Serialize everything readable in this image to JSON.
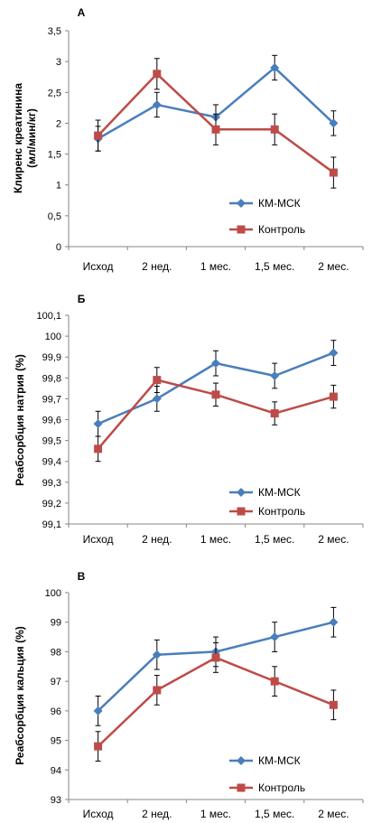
{
  "chart_data": [
    {
      "panel": "A",
      "type": "line",
      "title": "А",
      "ylabel": "Клиренс креатинина (мл/мин/кг)",
      "ylabel_lines": [
        "Клиренс креатинина",
        "(мл/мин/кг)"
      ],
      "categories": [
        "Исход",
        "2 нед.",
        "1 мес.",
        "1,5 мес.",
        "2 мес."
      ],
      "ylim": [
        0,
        3.5
      ],
      "yticks": [
        0,
        0.5,
        1,
        1.5,
        2,
        2.5,
        3,
        3.5
      ],
      "ytick_labels": [
        "0",
        "0,5",
        "1",
        "1,5",
        "2",
        "2,5",
        "3",
        "3,5"
      ],
      "legend_position": "bottom-right",
      "series": [
        {
          "name": "КМ-МСК",
          "color": "#4a7ebb",
          "marker": "diamond",
          "values": [
            1.75,
            2.3,
            2.1,
            2.9,
            2.0
          ],
          "errors": [
            0.2,
            0.2,
            0.2,
            0.2,
            0.2
          ]
        },
        {
          "name": "Контроль",
          "color": "#be4b48",
          "marker": "square",
          "values": [
            1.8,
            2.8,
            1.9,
            1.9,
            1.2
          ],
          "errors": [
            0.25,
            0.25,
            0.25,
            0.25,
            0.25
          ]
        }
      ]
    },
    {
      "panel": "B",
      "type": "line",
      "title": "Б",
      "ylabel": "Реабсорбция натрия (%)",
      "ylabel_lines": [
        "Реабсорбция натрия (%)"
      ],
      "categories": [
        "Исход",
        "2 нед.",
        "1 мес.",
        "1,5 мес.",
        "2 мес."
      ],
      "ylim": [
        99.1,
        100.1
      ],
      "yticks": [
        99.1,
        99.2,
        99.3,
        99.4,
        99.5,
        99.6,
        99.7,
        99.8,
        99.9,
        100.0,
        100.1
      ],
      "ytick_labels": [
        "99,1",
        "99,2",
        "99,3",
        "99,4",
        "99,5",
        "99,6",
        "99,7",
        "99,8",
        "99,9",
        "100",
        "100,1"
      ],
      "legend_position": "bottom-right",
      "series": [
        {
          "name": "КМ-МСК",
          "color": "#4a7ebb",
          "marker": "diamond",
          "values": [
            99.58,
            99.7,
            99.87,
            99.81,
            99.92
          ],
          "errors": [
            0.06,
            0.06,
            0.06,
            0.06,
            0.06
          ]
        },
        {
          "name": "Контроль",
          "color": "#be4b48",
          "marker": "square",
          "values": [
            99.46,
            99.79,
            99.72,
            99.63,
            99.71
          ],
          "errors": [
            0.06,
            0.06,
            0.055,
            0.055,
            0.055
          ]
        }
      ]
    },
    {
      "panel": "C",
      "type": "line",
      "title": "В",
      "ylabel": "Реабсорбция кальция (%)",
      "ylabel_lines": [
        "Реабсорбция кальция (%)"
      ],
      "categories": [
        "Исход",
        "2 нед.",
        "1 мес.",
        "1,5 мес.",
        "2 мес."
      ],
      "ylim": [
        93,
        100
      ],
      "yticks": [
        93,
        94,
        95,
        96,
        97,
        98,
        99,
        100
      ],
      "ytick_labels": [
        "93",
        "94",
        "95",
        "96",
        "97",
        "98",
        "99",
        "100"
      ],
      "legend_position": "bottom-right",
      "series": [
        {
          "name": "КМ-МСК",
          "color": "#4a7ebb",
          "marker": "diamond",
          "values": [
            96.0,
            97.9,
            98.0,
            98.5,
            99.0
          ],
          "errors": [
            0.5,
            0.5,
            0.5,
            0.5,
            0.5
          ]
        },
        {
          "name": "Контроль",
          "color": "#be4b48",
          "marker": "square",
          "values": [
            94.8,
            96.7,
            97.8,
            97.0,
            96.2
          ],
          "errors": [
            0.5,
            0.5,
            0.5,
            0.5,
            0.5
          ]
        }
      ]
    }
  ]
}
